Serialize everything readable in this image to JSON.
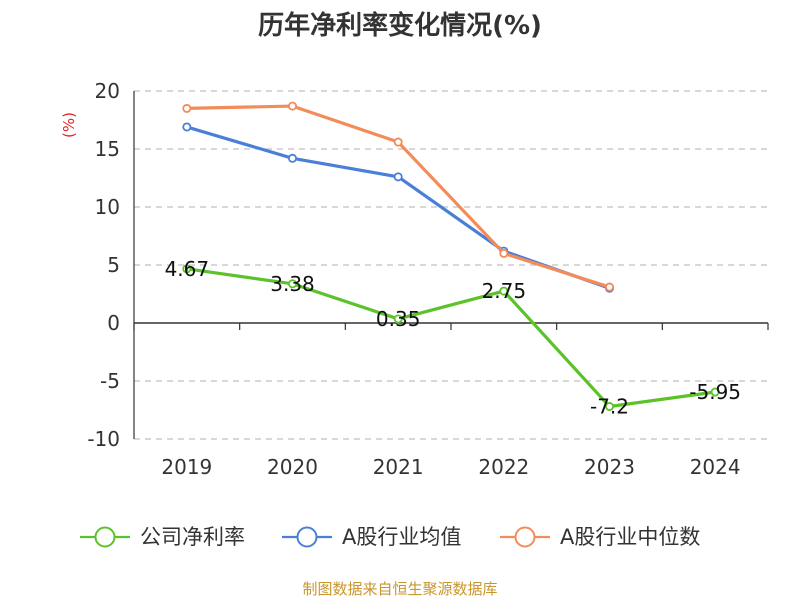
{
  "chart_data": {
    "type": "line",
    "title": "历年净利率变化情况(%)",
    "ylabel": "(%)",
    "categories": [
      "2019",
      "2020",
      "2021",
      "2022",
      "2023",
      "2024"
    ],
    "ylim": [
      -10,
      20
    ],
    "yticks": [
      "20",
      "15",
      "10",
      "5",
      "0",
      "-5",
      "-10"
    ],
    "grid": true,
    "legend_position": "bottom",
    "series": [
      {
        "name": "公司净利率",
        "color": "#5cc22a",
        "values": [
          4.67,
          3.38,
          0.35,
          2.75,
          -7.2,
          -5.95
        ],
        "labels": [
          "4.67",
          "3.38",
          "0.35",
          "2.75",
          "-7.2",
          "-5.95"
        ]
      },
      {
        "name": "A股行业均值",
        "color": "#4a7fd8",
        "values": [
          16.9,
          14.2,
          12.6,
          6.2,
          3.0,
          null
        ]
      },
      {
        "name": "A股行业中位数",
        "color": "#f28c5a",
        "values": [
          18.5,
          18.7,
          15.6,
          6.0,
          3.1,
          null
        ]
      }
    ]
  },
  "footer": {
    "source": "制图数据来自恒生聚源数据库"
  }
}
